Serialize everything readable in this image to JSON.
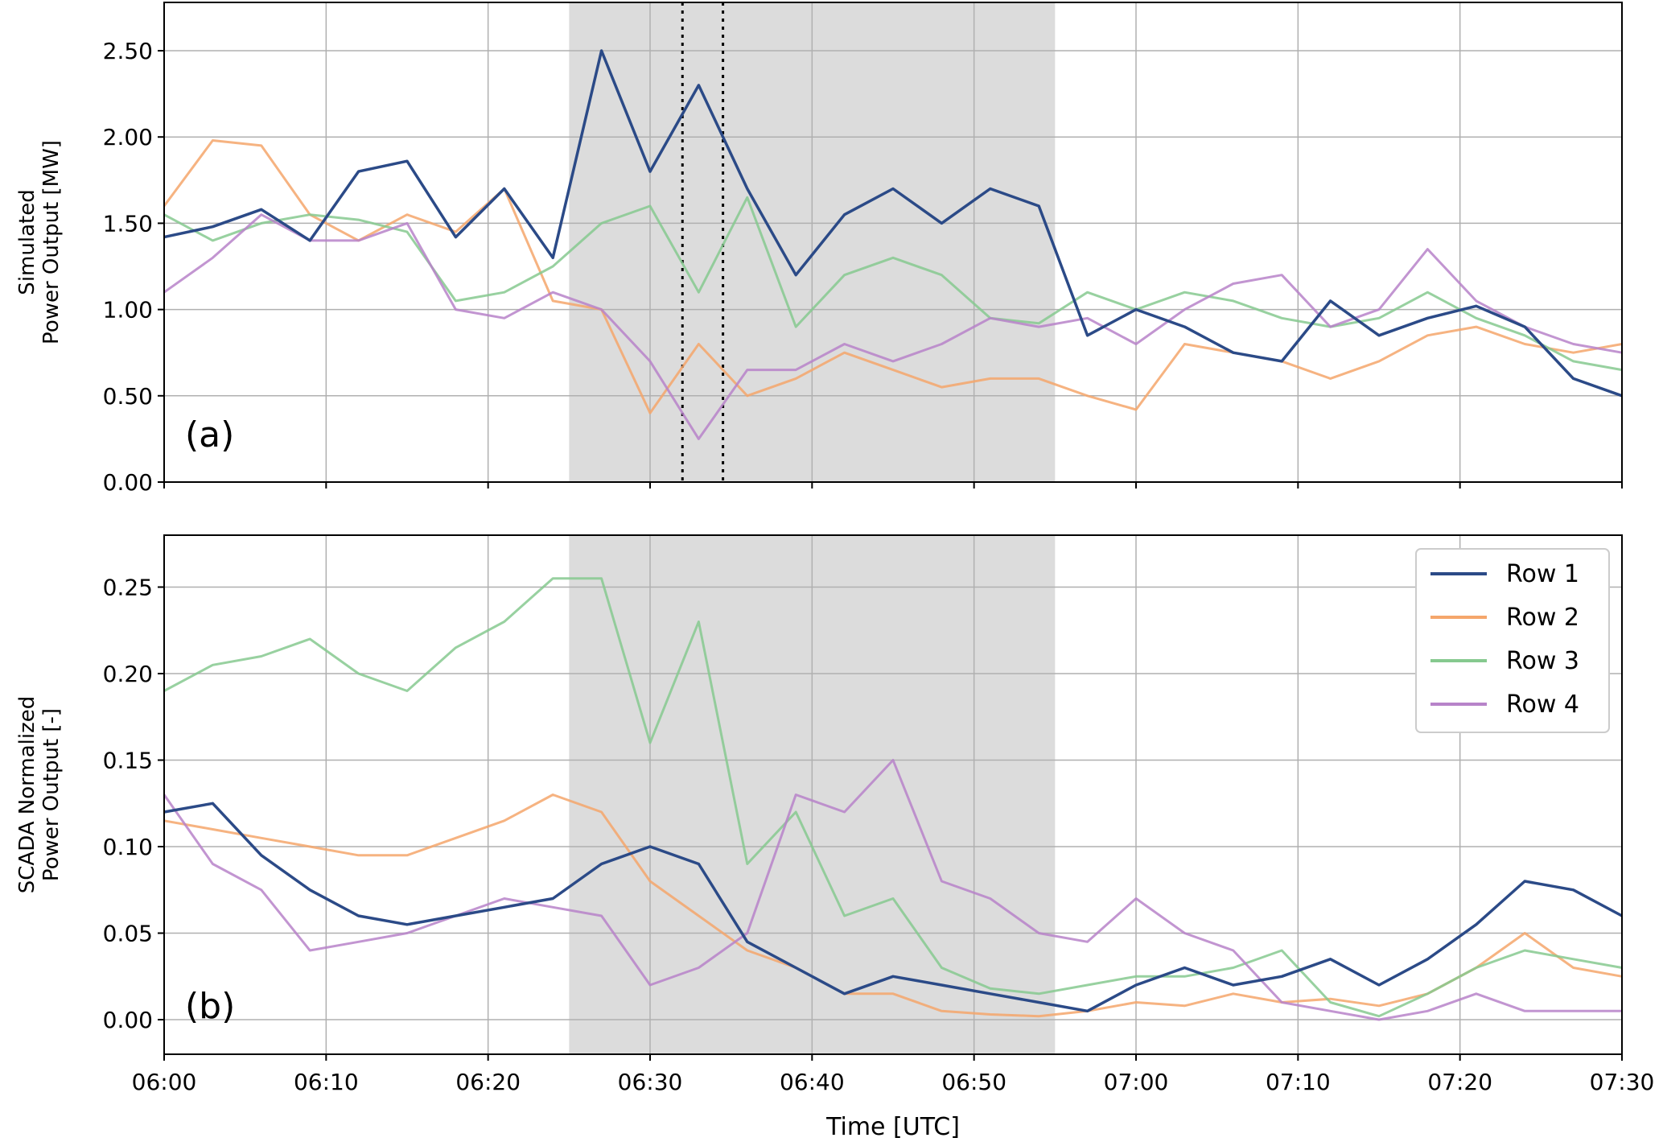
{
  "figure": {
    "xlabel": "Time [UTC]",
    "x_ticks": [
      "06:00",
      "06:10",
      "06:20",
      "06:30",
      "06:40",
      "06:50",
      "07:00",
      "07:10",
      "07:20",
      "07:30"
    ],
    "shaded_span": {
      "start": "06:25",
      "end": "06:55",
      "color": "#dcdcdc"
    }
  },
  "legend": {
    "placement": "top-right of panel (b)",
    "entries": [
      {
        "name": "Row 1",
        "color": "#2b4a87"
      },
      {
        "name": "Row 2",
        "color": "#f5a66b"
      },
      {
        "name": "Row 3",
        "color": "#86c98f"
      },
      {
        "name": "Row 4",
        "color": "#b783c9"
      }
    ]
  },
  "chart_data": [
    {
      "type": "line",
      "panel_label": "(a)",
      "ylabel_lines": [
        "Simulated",
        "Power Output [MW]"
      ],
      "ylim": [
        0,
        2.78
      ],
      "y_ticks": [
        "0.00",
        "0.50",
        "1.00",
        "1.50",
        "2.00",
        "2.50"
      ],
      "x_range": [
        "06:00",
        "07:30"
      ],
      "grid": true,
      "vertical_markers": [
        "06:32",
        "06:34.5"
      ],
      "x": [
        "06:00",
        "06:03",
        "06:06",
        "06:09",
        "06:12",
        "06:15",
        "06:18",
        "06:21",
        "06:24",
        "06:27",
        "06:30",
        "06:33",
        "06:36",
        "06:39",
        "06:42",
        "06:45",
        "06:48",
        "06:51",
        "06:54",
        "06:57",
        "07:00",
        "07:03",
        "07:06",
        "07:09",
        "07:12",
        "07:15",
        "07:18",
        "07:21",
        "07:24",
        "07:27",
        "07:30"
      ],
      "series": [
        {
          "name": "Row 1",
          "color": "#2b4a87",
          "values": [
            1.42,
            1.48,
            1.58,
            1.4,
            1.8,
            1.86,
            1.42,
            1.7,
            1.3,
            2.5,
            1.8,
            2.3,
            1.7,
            1.2,
            1.55,
            1.7,
            1.5,
            1.7,
            1.6,
            0.85,
            1.0,
            0.9,
            0.75,
            0.7,
            1.05,
            0.85,
            0.95,
            1.02,
            0.9,
            0.6,
            0.5
          ]
        },
        {
          "name": "Row 2",
          "color": "#f5a66b",
          "values": [
            1.6,
            1.98,
            1.95,
            1.55,
            1.4,
            1.55,
            1.45,
            1.7,
            1.05,
            1.0,
            0.4,
            0.8,
            0.5,
            0.6,
            0.75,
            0.65,
            0.55,
            0.6,
            0.6,
            0.5,
            0.42,
            0.8,
            0.75,
            0.7,
            0.6,
            0.7,
            0.85,
            0.9,
            0.8,
            0.75,
            0.8
          ]
        },
        {
          "name": "Row 3",
          "color": "#86c98f",
          "values": [
            1.55,
            1.4,
            1.5,
            1.55,
            1.52,
            1.45,
            1.05,
            1.1,
            1.25,
            1.5,
            1.6,
            1.1,
            1.65,
            0.9,
            1.2,
            1.3,
            1.2,
            0.95,
            0.92,
            1.1,
            1.0,
            1.1,
            1.05,
            0.95,
            0.9,
            0.95,
            1.1,
            0.95,
            0.85,
            0.7,
            0.65
          ]
        },
        {
          "name": "Row 4",
          "color": "#b783c9",
          "values": [
            1.1,
            1.3,
            1.55,
            1.4,
            1.4,
            1.5,
            1.0,
            0.95,
            1.1,
            1.0,
            0.7,
            0.25,
            0.65,
            0.65,
            0.8,
            0.7,
            0.8,
            0.95,
            0.9,
            0.95,
            0.8,
            1.0,
            1.15,
            1.2,
            0.9,
            1.0,
            1.35,
            1.05,
            0.9,
            0.8,
            0.75
          ]
        }
      ]
    },
    {
      "type": "line",
      "panel_label": "(b)",
      "ylabel_lines": [
        "SCADA Normalized",
        "Power Output [-]"
      ],
      "ylim": [
        -0.02,
        0.28
      ],
      "y_ticks": [
        "0.00",
        "0.05",
        "0.10",
        "0.15",
        "0.20",
        "0.25"
      ],
      "x_range": [
        "06:00",
        "07:30"
      ],
      "grid": true,
      "x": [
        "06:00",
        "06:03",
        "06:06",
        "06:09",
        "06:12",
        "06:15",
        "06:18",
        "06:21",
        "06:24",
        "06:27",
        "06:30",
        "06:33",
        "06:36",
        "06:39",
        "06:42",
        "06:45",
        "06:48",
        "06:51",
        "06:54",
        "06:57",
        "07:00",
        "07:03",
        "07:06",
        "07:09",
        "07:12",
        "07:15",
        "07:18",
        "07:21",
        "07:24",
        "07:27",
        "07:30"
      ],
      "series": [
        {
          "name": "Row 1",
          "color": "#2b4a87",
          "values": [
            0.12,
            0.125,
            0.095,
            0.075,
            0.06,
            0.055,
            0.06,
            0.065,
            0.07,
            0.09,
            0.1,
            0.09,
            0.045,
            0.03,
            0.015,
            0.025,
            0.02,
            0.015,
            0.01,
            0.005,
            0.02,
            0.03,
            0.02,
            0.025,
            0.035,
            0.02,
            0.035,
            0.055,
            0.08,
            0.075,
            0.06
          ]
        },
        {
          "name": "Row 2",
          "color": "#f5a66b",
          "values": [
            0.115,
            0.11,
            0.105,
            0.1,
            0.095,
            0.095,
            0.105,
            0.115,
            0.13,
            0.12,
            0.08,
            0.06,
            0.04,
            0.03,
            0.015,
            0.015,
            0.005,
            0.003,
            0.002,
            0.005,
            0.01,
            0.008,
            0.015,
            0.01,
            0.012,
            0.008,
            0.015,
            0.03,
            0.05,
            0.03,
            0.025
          ]
        },
        {
          "name": "Row 3",
          "color": "#86c98f",
          "values": [
            0.19,
            0.205,
            0.21,
            0.22,
            0.2,
            0.19,
            0.215,
            0.23,
            0.255,
            0.255,
            0.16,
            0.23,
            0.09,
            0.12,
            0.06,
            0.07,
            0.03,
            0.018,
            0.015,
            0.02,
            0.025,
            0.025,
            0.03,
            0.04,
            0.01,
            0.002,
            0.015,
            0.03,
            0.04,
            0.035,
            0.03
          ]
        },
        {
          "name": "Row 4",
          "color": "#b783c9",
          "values": [
            0.13,
            0.09,
            0.075,
            0.04,
            0.045,
            0.05,
            0.06,
            0.07,
            0.065,
            0.06,
            0.02,
            0.03,
            0.05,
            0.13,
            0.12,
            0.15,
            0.08,
            0.07,
            0.05,
            0.045,
            0.07,
            0.05,
            0.04,
            0.01,
            0.005,
            0.0,
            0.005,
            0.015,
            0.005,
            0.005,
            0.005
          ]
        }
      ]
    }
  ]
}
